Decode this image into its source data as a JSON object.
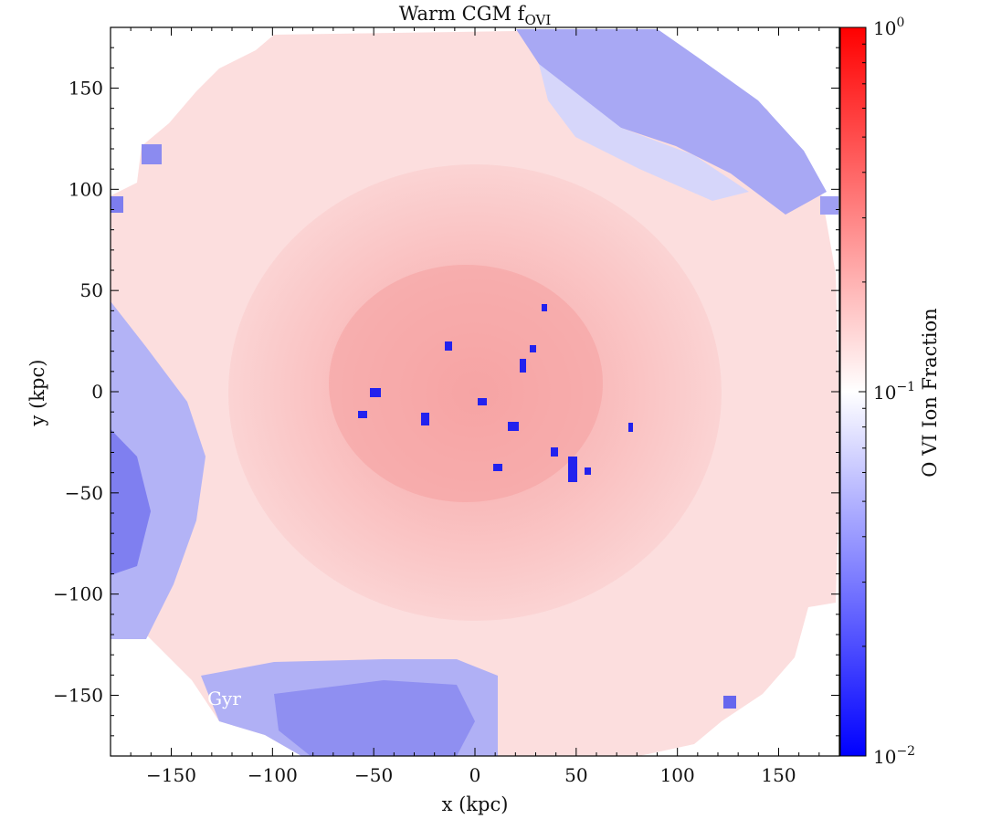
{
  "chart_data": {
    "type": "heatmap",
    "title": "Warm CGM f",
    "title_subscript": "OVI",
    "xlabel": "x  (kpc)",
    "ylabel": "y  (kpc)",
    "xlim": [
      -180,
      180
    ],
    "ylim": [
      -180,
      180
    ],
    "x_ticks": [
      -150,
      -100,
      -50,
      0,
      50,
      100,
      150
    ],
    "y_ticks": [
      -150,
      -100,
      -50,
      0,
      50,
      100,
      150
    ],
    "x_tick_labels": [
      "−150",
      "−100",
      "−50",
      "0",
      "50",
      "100",
      "150"
    ],
    "y_tick_labels": [
      "−150",
      "−100",
      "−50",
      "0",
      "50",
      "100",
      "150"
    ],
    "colorbar": {
      "label": "O VI Ion Fraction",
      "scale": "log",
      "vmin": 0.01,
      "vmax": 1,
      "cmap": "bwr",
      "colors": [
        "#0000ff",
        "#ffffff",
        "#ff0000"
      ],
      "tick_values": [
        0.01,
        0.1,
        1
      ],
      "tick_labels": [
        {
          "base": "10",
          "exp": "−2"
        },
        {
          "base": "10",
          "exp": "−1"
        },
        {
          "base": "10",
          "exp": "0"
        }
      ]
    },
    "overlay_text": "8 Gyr",
    "grid": false
  }
}
